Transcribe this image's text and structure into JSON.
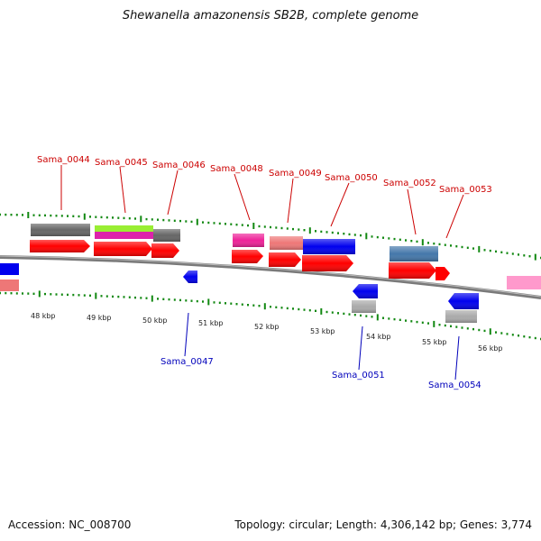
{
  "header": {
    "title": "Shewanella amazonensis SB2B, complete genome"
  },
  "footer": {
    "accession": "Accession: NC_008700",
    "summary": "Topology: circular; Length: 4,306,142 bp; Genes: 3,774"
  },
  "colors": {
    "backbone": "#7a7a7a",
    "tick": "#118811",
    "gene_forward": "#ff0000",
    "gene_reverse": "#0000ee",
    "top_label": "#cc0000",
    "bottom_label": "#0000bb"
  },
  "kbp_labels": [
    "48 kbp",
    "49 kbp",
    "50 kbp",
    "51 kbp",
    "52 kbp",
    "53 kbp",
    "54 kbp",
    "55 kbp",
    "56 kbp"
  ],
  "top_labels": [
    "Sama_0044",
    "Sama_0045",
    "Sama_0046",
    "Sama_0048",
    "Sama_0049",
    "Sama_0050",
    "Sama_0052",
    "Sama_0053"
  ],
  "bottom_labels": [
    "Sama_0047",
    "Sama_0051",
    "Sama_0054"
  ]
}
